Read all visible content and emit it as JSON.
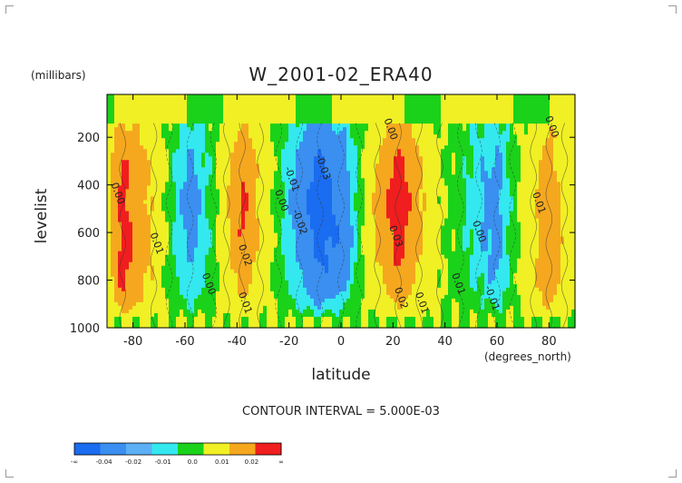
{
  "chart_data": {
    "type": "heatmap",
    "title": "W_2001-02_ERA40",
    "xlabel": "latitude",
    "x_units": "(degrees_north)",
    "ylabel": "levelist",
    "y_units": "(millibars)",
    "xlim": [
      -90,
      90
    ],
    "ylim": [
      1000,
      20
    ],
    "y_inverted": true,
    "x_ticks": [
      -80,
      -60,
      -40,
      -20,
      0,
      20,
      40,
      60,
      80
    ],
    "y_ticks": [
      200,
      400,
      600,
      800,
      1000
    ],
    "contour_interval_text": "CONTOUR INTERVAL = 5.000E-03",
    "contour_labels": [
      "0.00",
      "0.01",
      "0.02",
      "0.03",
      "-0.01",
      "-0.02",
      "-0.03"
    ],
    "bands": [
      {
        "lat": -90,
        "value": 0.005
      },
      {
        "lat": -84,
        "value": 0.024
      },
      {
        "lat": -72,
        "value": 0.008
      },
      {
        "lat": -66,
        "value": -0.002
      },
      {
        "lat": -58,
        "value": -0.014
      },
      {
        "lat": -49,
        "value": -0.002
      },
      {
        "lat": -44,
        "value": 0.008
      },
      {
        "lat": -38,
        "value": 0.022
      },
      {
        "lat": -31,
        "value": 0.008
      },
      {
        "lat": -24,
        "value": -0.003
      },
      {
        "lat": -16,
        "value": -0.014
      },
      {
        "lat": -8,
        "value": -0.026
      },
      {
        "lat": 0,
        "value": -0.018
      },
      {
        "lat": 7,
        "value": -0.004
      },
      {
        "lat": 14,
        "value": 0.012
      },
      {
        "lat": 22,
        "value": 0.027
      },
      {
        "lat": 30,
        "value": 0.012
      },
      {
        "lat": 38,
        "value": 0.001
      },
      {
        "lat": 46,
        "value": -0.003
      },
      {
        "lat": 53,
        "value": -0.009
      },
      {
        "lat": 60,
        "value": -0.014
      },
      {
        "lat": 66,
        "value": -0.003
      },
      {
        "lat": 74,
        "value": 0.007
      },
      {
        "lat": 80,
        "value": 0.018
      },
      {
        "lat": 86,
        "value": 0.006
      },
      {
        "lat": 90,
        "value": 0.004
      }
    ],
    "colorbar": {
      "labels": [
        "-∞",
        "-0.04",
        "-0.02",
        "-0.01",
        "0.0",
        "0.01",
        "0.02",
        "∞"
      ],
      "colors": [
        "#1a6cf0",
        "#3a8ff0",
        "#5cb0f5",
        "#34e8f0",
        "#1ad21a",
        "#f0f025",
        "#f5a81e",
        "#f01e1e"
      ]
    }
  },
  "level_scale": [
    {
      "max": -0.02,
      "color": "#1a6cf0"
    },
    {
      "max": -0.01,
      "color": "#3a8ff0"
    },
    {
      "max": -0.005,
      "color": "#34e8f0"
    },
    {
      "max": 0.0,
      "color": "#1ad21a"
    },
    {
      "max": 0.01,
      "color": "#f0f025"
    },
    {
      "max": 0.02,
      "color": "#f5a81e"
    },
    {
      "max": 1.0,
      "color": "#f01e1e"
    }
  ]
}
